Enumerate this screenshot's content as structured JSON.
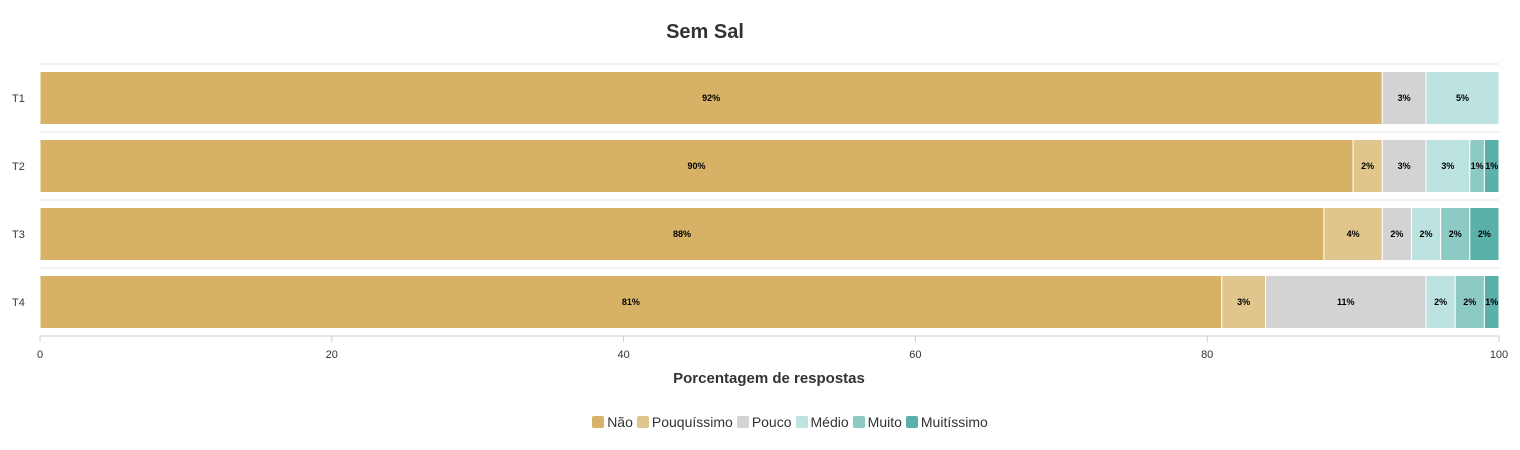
{
  "chart_data": {
    "type": "bar",
    "orientation": "horizontal",
    "stacked": true,
    "title": "Sem Sal",
    "xlabel": "Porcentagem de respostas",
    "ylabel": "",
    "xlim": [
      0,
      100
    ],
    "xticks": [
      0,
      20,
      40,
      60,
      80,
      100
    ],
    "categories": [
      "T1",
      "T2",
      "T3",
      "T4"
    ],
    "series": [
      {
        "name": "Não",
        "color": "#d7b266",
        "values": [
          92,
          90,
          88,
          81
        ]
      },
      {
        "name": "Pouquíssimo",
        "color": "#e0c68c",
        "values": [
          0,
          2,
          4,
          3
        ]
      },
      {
        "name": "Pouco",
        "color": "#d3d3d3",
        "values": [
          3,
          3,
          2,
          11
        ]
      },
      {
        "name": "Médio",
        "color": "#bde3e0",
        "values": [
          5,
          3,
          2,
          2
        ]
      },
      {
        "name": "Muito",
        "color": "#8dcac4",
        "values": [
          0,
          1,
          2,
          2
        ]
      },
      {
        "name": "Muitíssimo",
        "color": "#5ab1a9",
        "values": [
          0,
          1,
          2,
          1
        ]
      }
    ],
    "value_suffix": "%",
    "legend_position": "bottom",
    "grid": false
  }
}
